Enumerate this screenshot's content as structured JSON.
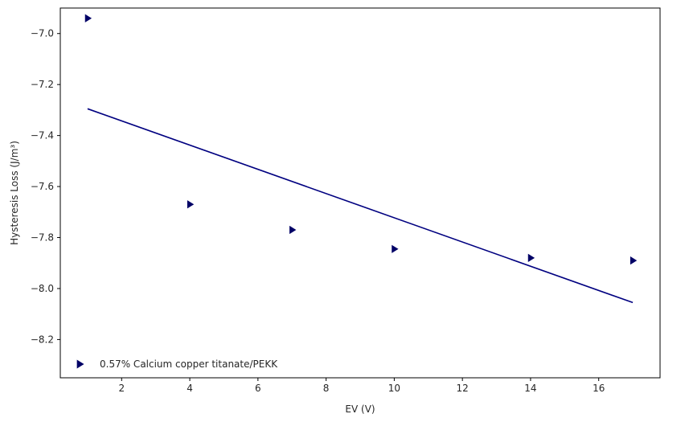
{
  "chart_data": {
    "type": "scatter",
    "xlabel": "EV (V)",
    "ylabel": "Hysteresis Loss (J/m³)",
    "xlim": [
      0.2,
      17.8
    ],
    "ylim": [
      -8.35,
      -6.9
    ],
    "xticks": [
      2,
      4,
      6,
      8,
      10,
      12,
      14,
      16
    ],
    "yticks": [
      -8.2,
      -8.0,
      -7.8,
      -7.6,
      -7.4,
      -7.2,
      -7.0
    ],
    "grid": false,
    "legend_position": "lower-left",
    "series": [
      {
        "name": "0.57% Calcium copper titanate/PEKK",
        "marker": "triangle-right",
        "color": "#000066",
        "points": [
          {
            "x": 1,
            "y": -6.94
          },
          {
            "x": 4,
            "y": -7.67
          },
          {
            "x": 7,
            "y": -7.77
          },
          {
            "x": 10,
            "y": -7.845
          },
          {
            "x": 14,
            "y": -7.88
          },
          {
            "x": 17,
            "y": -7.89
          }
        ]
      }
    ],
    "trendline": {
      "color": "#000080",
      "points": [
        {
          "x": 1,
          "y": -7.295
        },
        {
          "x": 17,
          "y": -8.055
        }
      ]
    }
  }
}
